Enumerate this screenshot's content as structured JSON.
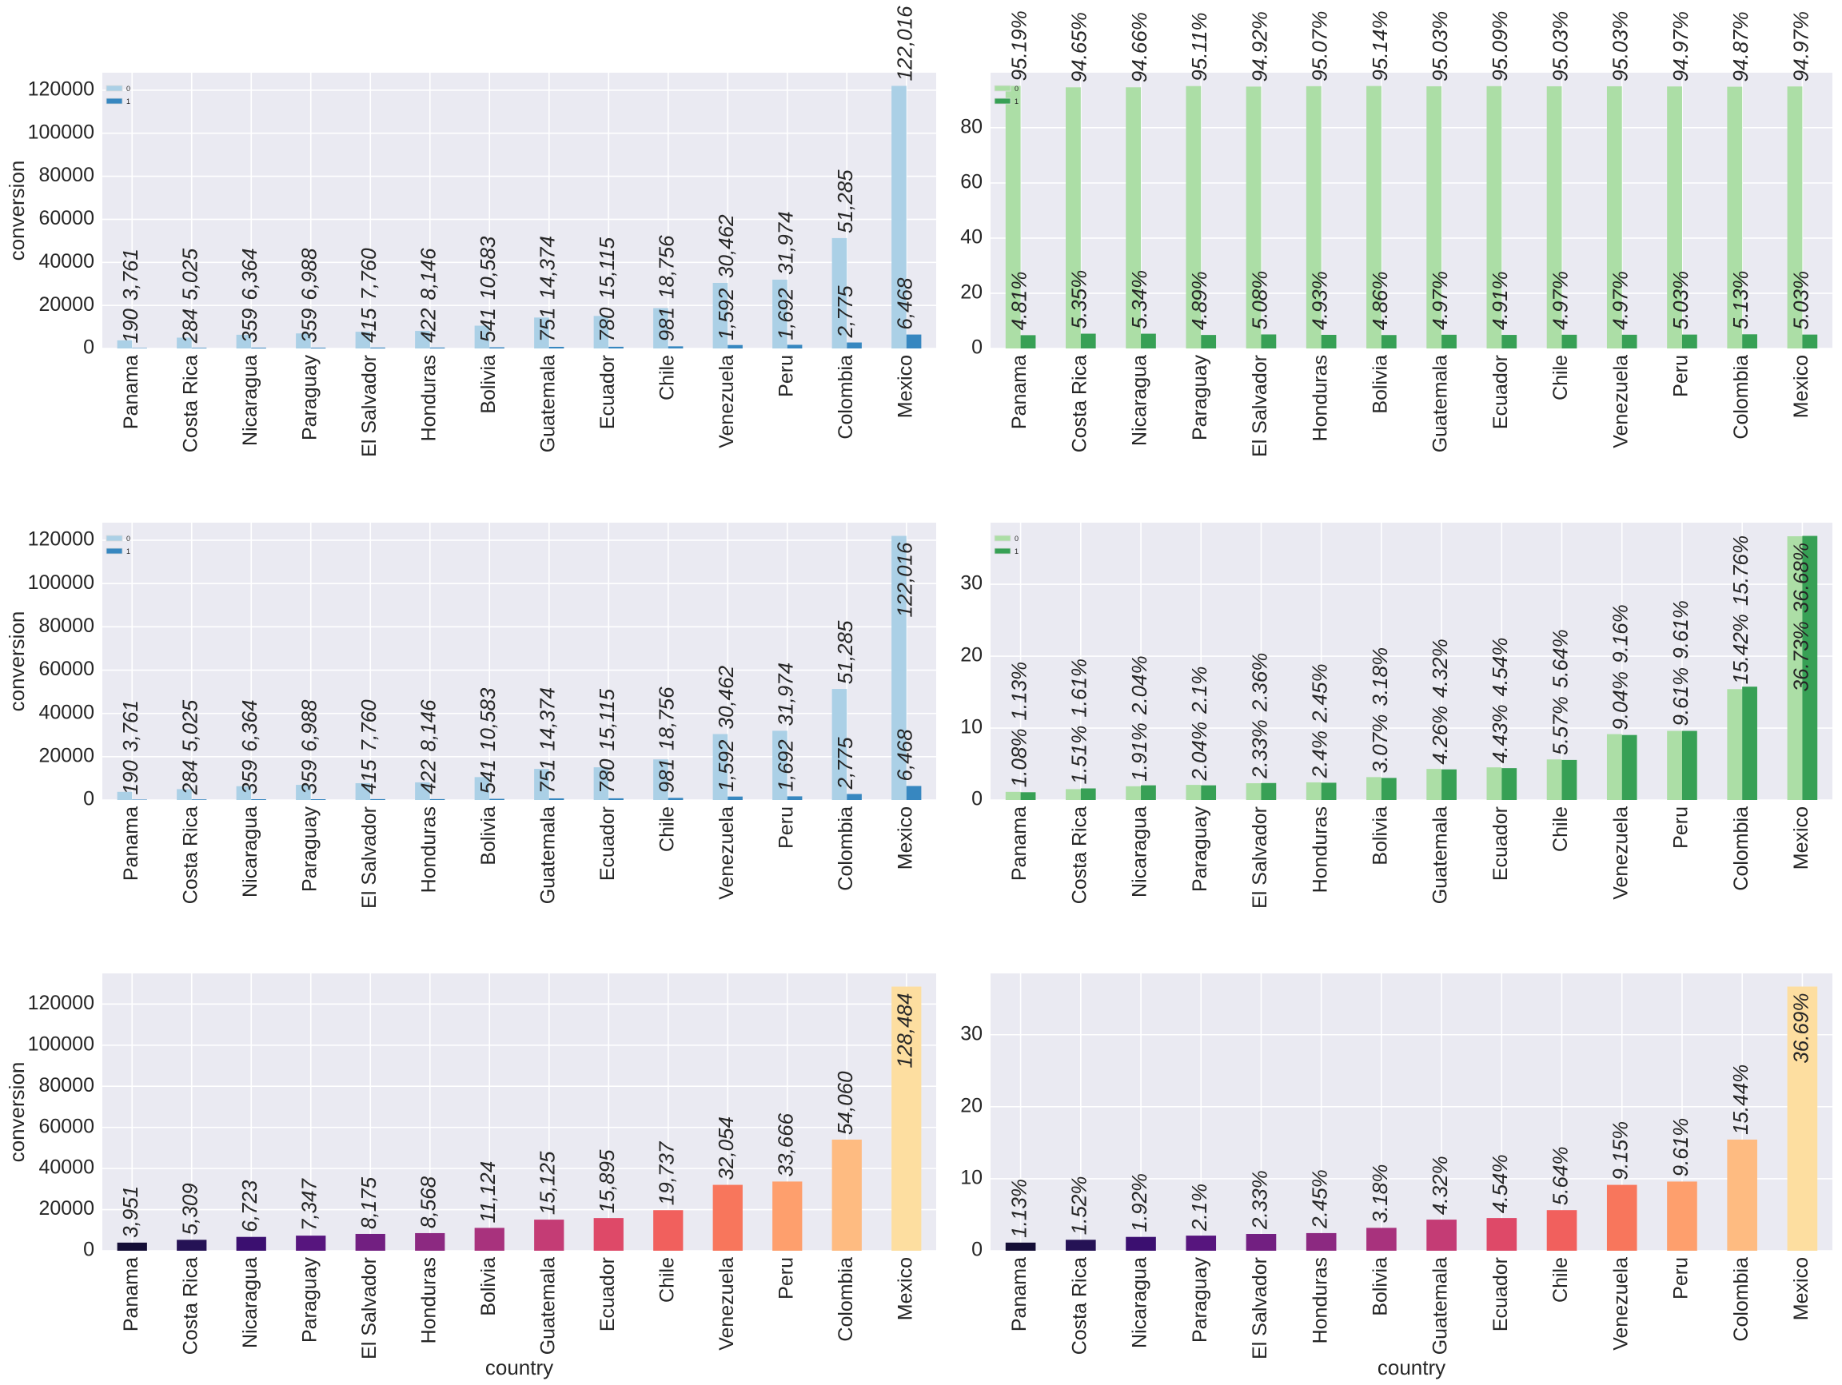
{
  "chart_data": [
    {
      "type": "bar",
      "categories": [
        "Panama",
        "Costa Rica",
        "Nicaragua",
        "Paraguay",
        "El Salvador",
        "Honduras",
        "Bolivia",
        "Guatemala",
        "Ecuador",
        "Chile",
        "Venezuela",
        "Peru",
        "Colombia",
        "Mexico"
      ],
      "series": [
        {
          "name": "0",
          "color": "#abd0e6",
          "values": [
            3761,
            5025,
            6364,
            6988,
            7760,
            8146,
            10583,
            14374,
            15115,
            18756,
            30462,
            31974,
            51285,
            122016
          ],
          "labels": [
            "3,761",
            "5,025",
            "6,364",
            "6,988",
            "7,760",
            "8,146",
            "10,583",
            "14,374",
            "15,115",
            "18,756",
            "30,462",
            "31,974",
            "51,285",
            "122,016"
          ]
        },
        {
          "name": "1",
          "color": "#3787c0",
          "values": [
            190,
            284,
            359,
            359,
            415,
            422,
            541,
            751,
            780,
            981,
            1592,
            1692,
            2775,
            6468
          ],
          "labels": [
            "190",
            "284",
            "359",
            "359",
            "415",
            "422",
            "541",
            "751",
            "780",
            "981",
            "1,592",
            "1,692",
            "2,775",
            "6,468"
          ]
        }
      ],
      "ylabel": "conversion",
      "xlabel": "",
      "ylim": [
        0,
        128117
      ],
      "yticks": [
        0,
        20000,
        40000,
        60000,
        80000,
        100000,
        120000
      ],
      "ytick_labels": [
        "0",
        "20000",
        "40000",
        "60000",
        "80000",
        "100000",
        "120000"
      ],
      "legend": "top-left",
      "grid": true
    },
    {
      "type": "bar",
      "categories": [
        "Panama",
        "Costa Rica",
        "Nicaragua",
        "Paraguay",
        "El Salvador",
        "Honduras",
        "Bolivia",
        "Guatemala",
        "Ecuador",
        "Chile",
        "Venezuela",
        "Peru",
        "Colombia",
        "Mexico"
      ],
      "series": [
        {
          "name": "0",
          "color": "#acdea6",
          "values": [
            95.19,
            94.65,
            94.66,
            95.11,
            94.92,
            95.07,
            95.14,
            95.03,
            95.09,
            95.03,
            95.03,
            94.97,
            94.87,
            94.97
          ],
          "labels": [
            "95.19%",
            "94.65%",
            "94.66%",
            "95.11%",
            "94.92%",
            "95.07%",
            "95.14%",
            "95.03%",
            "95.09%",
            "95.03%",
            "95.03%",
            "94.97%",
            "94.87%",
            "94.97%"
          ]
        },
        {
          "name": "1",
          "color": "#37a055",
          "values": [
            4.81,
            5.35,
            5.34,
            4.89,
            5.08,
            4.93,
            4.86,
            4.97,
            4.91,
            4.97,
            4.97,
            5.03,
            5.13,
            5.03
          ],
          "labels": [
            "4.81%",
            "5.35%",
            "5.34%",
            "4.89%",
            "5.08%",
            "4.93%",
            "4.86%",
            "4.97%",
            "4.91%",
            "4.97%",
            "4.97%",
            "5.03%",
            "5.13%",
            "5.03%"
          ]
        }
      ],
      "ylabel": "",
      "xlabel": "",
      "ylim": [
        0,
        99.95
      ],
      "yticks": [
        0,
        20,
        40,
        60,
        80
      ],
      "ytick_labels": [
        "0",
        "20",
        "40",
        "60",
        "80"
      ],
      "legend": "top-left",
      "grid": true
    },
    {
      "type": "bar",
      "categories": [
        "Panama",
        "Costa Rica",
        "Nicaragua",
        "Paraguay",
        "El Salvador",
        "Honduras",
        "Bolivia",
        "Guatemala",
        "Ecuador",
        "Chile",
        "Venezuela",
        "Peru",
        "Colombia",
        "Mexico"
      ],
      "series": [
        {
          "name": "0",
          "color": "#abd0e6",
          "values": [
            3761,
            5025,
            6364,
            6988,
            7760,
            8146,
            10583,
            14374,
            15115,
            18756,
            30462,
            31974,
            51285,
            122016
          ],
          "labels": [
            "3,761",
            "5,025",
            "6,364",
            "6,988",
            "7,760",
            "8,146",
            "10,583",
            "14,374",
            "15,115",
            "18,756",
            "30,462",
            "31,974",
            "51,285",
            "122,016"
          ]
        },
        {
          "name": "1",
          "color": "#3787c0",
          "values": [
            190,
            284,
            359,
            359,
            415,
            422,
            541,
            751,
            780,
            981,
            1592,
            1692,
            2775,
            6468
          ],
          "labels": [
            "190",
            "284",
            "359",
            "359",
            "415",
            "422",
            "541",
            "751",
            "780",
            "981",
            "1,592",
            "1,692",
            "2,775",
            "6,468"
          ]
        }
      ],
      "ylabel": "conversion",
      "xlabel": "",
      "ylim": [
        0,
        128117
      ],
      "yticks": [
        0,
        20000,
        40000,
        60000,
        80000,
        100000,
        120000
      ],
      "ytick_labels": [
        "0",
        "20000",
        "40000",
        "60000",
        "80000",
        "100000",
        "120000"
      ],
      "legend": "top-left",
      "grid": true
    },
    {
      "type": "bar",
      "categories": [
        "Panama",
        "Costa Rica",
        "Nicaragua",
        "Paraguay",
        "El Salvador",
        "Honduras",
        "Bolivia",
        "Guatemala",
        "Ecuador",
        "Chile",
        "Venezuela",
        "Peru",
        "Colombia",
        "Mexico"
      ],
      "series": [
        {
          "name": "0",
          "color": "#acdea6",
          "values": [
            1.13,
            1.51,
            1.91,
            2.1,
            2.33,
            2.45,
            3.18,
            4.32,
            4.54,
            5.64,
            9.16,
            9.61,
            15.42,
            36.68
          ],
          "labels": [
            "1.13%",
            "1.51%",
            "1.91%",
            "2.1%",
            "2.33%",
            "2.45%",
            "3.18%",
            "4.32%",
            "4.54%",
            "5.64%",
            "9.16%",
            "9.61%",
            "15.42%",
            "36.68%"
          ]
        },
        {
          "name": "1",
          "color": "#37a055",
          "values": [
            1.08,
            1.61,
            2.04,
            2.04,
            2.36,
            2.4,
            3.07,
            4.26,
            4.43,
            5.57,
            9.04,
            9.61,
            15.76,
            36.73
          ],
          "labels": [
            "1.08%",
            "1.61%",
            "2.04%",
            "2.04%",
            "2.36%",
            "2.4%",
            "3.07%",
            "4.26%",
            "4.43%",
            "5.57%",
            "9.04%",
            "9.61%",
            "15.76%",
            "36.73%"
          ]
        }
      ],
      "ylabel": "",
      "xlabel": "",
      "ylim": [
        0,
        38.57
      ],
      "yticks": [
        0,
        10,
        20,
        30
      ],
      "ytick_labels": [
        "0",
        "10",
        "20",
        "30"
      ],
      "legend": "top-left",
      "grid": true
    },
    {
      "type": "bar",
      "categories": [
        "Panama",
        "Costa Rica",
        "Nicaragua",
        "Paraguay",
        "El Salvador",
        "Honduras",
        "Bolivia",
        "Guatemala",
        "Ecuador",
        "Chile",
        "Venezuela",
        "Peru",
        "Colombia",
        "Mexico"
      ],
      "series": [
        {
          "name": "total",
          "colors": [
            "#140e36",
            "#251255",
            "#3b0f70",
            "#57157e",
            "#721f81",
            "#8c2981",
            "#a8327d",
            "#c43c75",
            "#de4968",
            "#f1605d",
            "#f8765c",
            "#fe9f6d",
            "#febb81",
            "#fddea0"
          ],
          "values": [
            3951,
            5309,
            6723,
            7347,
            8175,
            8568,
            11124,
            15125,
            15895,
            19737,
            32054,
            33666,
            54060,
            128484
          ],
          "labels": [
            "3,951",
            "5,309",
            "6,723",
            "7,347",
            "8,175",
            "8,568",
            "11,124",
            "15,125",
            "15,895",
            "19,737",
            "32,054",
            "33,666",
            "54,060",
            "128,484"
          ]
        }
      ],
      "ylabel": "conversion",
      "xlabel": "country",
      "ylim": [
        0,
        134908
      ],
      "yticks": [
        0,
        20000,
        40000,
        60000,
        80000,
        100000,
        120000
      ],
      "ytick_labels": [
        "0",
        "20000",
        "40000",
        "60000",
        "80000",
        "100000",
        "120000"
      ],
      "legend": "none",
      "grid": true
    },
    {
      "type": "bar",
      "categories": [
        "Panama",
        "Costa Rica",
        "Nicaragua",
        "Paraguay",
        "El Salvador",
        "Honduras",
        "Bolivia",
        "Guatemala",
        "Ecuador",
        "Chile",
        "Venezuela",
        "Peru",
        "Colombia",
        "Mexico"
      ],
      "series": [
        {
          "name": "share",
          "colors": [
            "#140e36",
            "#251255",
            "#3b0f70",
            "#57157e",
            "#721f81",
            "#8c2981",
            "#a8327d",
            "#c43c75",
            "#de4968",
            "#f1605d",
            "#f8765c",
            "#fe9f6d",
            "#febb81",
            "#fddea0"
          ],
          "values": [
            1.13,
            1.52,
            1.92,
            2.1,
            2.33,
            2.45,
            3.18,
            4.32,
            4.54,
            5.64,
            9.15,
            9.61,
            15.44,
            36.69
          ],
          "labels": [
            "1.13%",
            "1.52%",
            "1.92%",
            "2.1%",
            "2.33%",
            "2.45%",
            "3.18%",
            "4.32%",
            "4.54%",
            "5.64%",
            "9.15%",
            "9.61%",
            "15.44%",
            "36.69%"
          ]
        }
      ],
      "ylabel": "",
      "xlabel": "country",
      "ylim": [
        0,
        38.52
      ],
      "yticks": [
        0,
        10,
        20,
        30
      ],
      "ytick_labels": [
        "0",
        "10",
        "20",
        "30"
      ],
      "legend": "none",
      "grid": true
    }
  ]
}
